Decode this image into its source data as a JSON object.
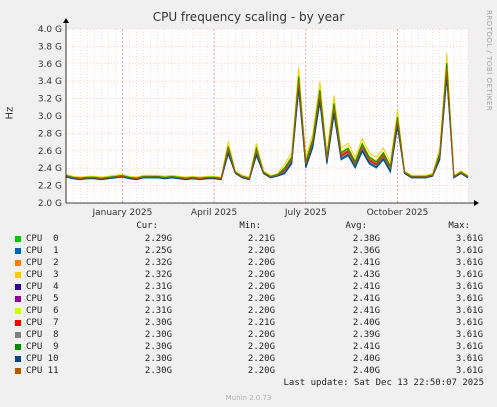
{
  "title": "CPU frequency scaling - by year",
  "side_text": "RRDTOOL / TOBI OETIKER",
  "footer": "Last update: Sat Dec 13 22:50:07 2025",
  "version": "Munin 2.0.73",
  "legend_headers": {
    "cur": "Cur:",
    "min": "Min:",
    "avg": "Avg:",
    "max": "Max:"
  },
  "chart_data": {
    "type": "line",
    "title": "CPU frequency scaling - by year",
    "ylabel": "Hz",
    "ylim": [
      2.0,
      4.0
    ],
    "y_ticks": [
      "2.0 G",
      "2.2 G",
      "2.4 G",
      "2.6 G",
      "2.8 G",
      "3.0 G",
      "3.2 G",
      "3.4 G",
      "3.6 G",
      "3.8 G",
      "4.0 G"
    ],
    "x_ticks": [
      "January 2025",
      "April 2025",
      "July 2025",
      "October 2025"
    ],
    "x_tick_weeks": [
      8,
      21,
      34,
      47
    ],
    "x": [
      0,
      1,
      2,
      3,
      4,
      5,
      6,
      7,
      8,
      9,
      10,
      11,
      12,
      13,
      14,
      15,
      16,
      17,
      18,
      19,
      20,
      21,
      22,
      23,
      24,
      25,
      26,
      27,
      28,
      29,
      30,
      31,
      32,
      33,
      34,
      35,
      36,
      37,
      38,
      39,
      40,
      41,
      42,
      43,
      44,
      45,
      46,
      47,
      48,
      49,
      50,
      51,
      52,
      53,
      54,
      55,
      56,
      57
    ],
    "grid": true,
    "base": [
      2.31,
      2.29,
      2.28,
      2.29,
      2.29,
      2.28,
      2.29,
      2.3,
      2.31,
      2.29,
      2.28,
      2.3,
      2.3,
      2.3,
      2.29,
      2.3,
      2.29,
      2.28,
      2.29,
      2.28,
      2.29,
      2.29,
      2.28,
      2.62,
      2.35,
      2.3,
      2.28,
      2.6,
      2.35,
      2.3,
      2.32,
      2.38,
      2.5,
      3.4,
      2.45,
      2.7,
      3.25,
      2.5,
      3.1,
      2.55,
      2.6,
      2.45,
      2.65,
      2.5,
      2.45,
      2.55,
      2.4,
      2.95,
      2.35,
      2.3,
      2.3,
      2.3,
      2.32,
      2.55,
      3.55,
      2.3,
      2.35,
      2.3
    ],
    "series": [
      {
        "name": "CPU  0",
        "color": "#00cc00",
        "cur": "2.29G",
        "min": "2.21G",
        "avg": "2.38G",
        "max": "3.61G",
        "offset": 0.02
      },
      {
        "name": "CPU  1",
        "color": "#0066b3",
        "cur": "2.25G",
        "min": "2.20G",
        "avg": "2.36G",
        "max": "3.61G",
        "offset": -0.04
      },
      {
        "name": "CPU  2",
        "color": "#ff8000",
        "cur": "2.32G",
        "min": "2.20G",
        "avg": "2.41G",
        "max": "3.61G",
        "offset": 0.01
      },
      {
        "name": "CPU  3",
        "color": "#ffcc00",
        "cur": "2.32G",
        "min": "2.20G",
        "avg": "2.43G",
        "max": "3.61G",
        "offset": 0.06
      },
      {
        "name": "CPU  4",
        "color": "#330099",
        "cur": "2.31G",
        "min": "2.20G",
        "avg": "2.41G",
        "max": "3.61G",
        "offset": 0.0
      },
      {
        "name": "CPU  5",
        "color": "#990099",
        "cur": "2.31G",
        "min": "2.20G",
        "avg": "2.41G",
        "max": "3.61G",
        "offset": 0.0
      },
      {
        "name": "CPU  6",
        "color": "#ccff00",
        "cur": "2.31G",
        "min": "2.20G",
        "avg": "2.41G",
        "max": "3.61G",
        "offset": 0.03
      },
      {
        "name": "CPU  7",
        "color": "#ff0000",
        "cur": "2.30G",
        "min": "2.21G",
        "avg": "2.40G",
        "max": "3.61G",
        "offset": -0.01
      },
      {
        "name": "CPU  8",
        "color": "#808080",
        "cur": "2.30G",
        "min": "2.20G",
        "avg": "2.39G",
        "max": "3.61G",
        "offset": -0.02
      },
      {
        "name": "CPU  9",
        "color": "#008f00",
        "cur": "2.30G",
        "min": "2.20G",
        "avg": "2.41G",
        "max": "3.61G",
        "offset": 0.02
      },
      {
        "name": "CPU 10",
        "color": "#00487d",
        "cur": "2.30G",
        "min": "2.20G",
        "avg": "2.40G",
        "max": "3.61G",
        "offset": -0.03
      },
      {
        "name": "CPU 11",
        "color": "#b35a00",
        "cur": "2.30G",
        "min": "2.20G",
        "avg": "2.40G",
        "max": "3.61G",
        "offset": 0.0
      }
    ]
  }
}
